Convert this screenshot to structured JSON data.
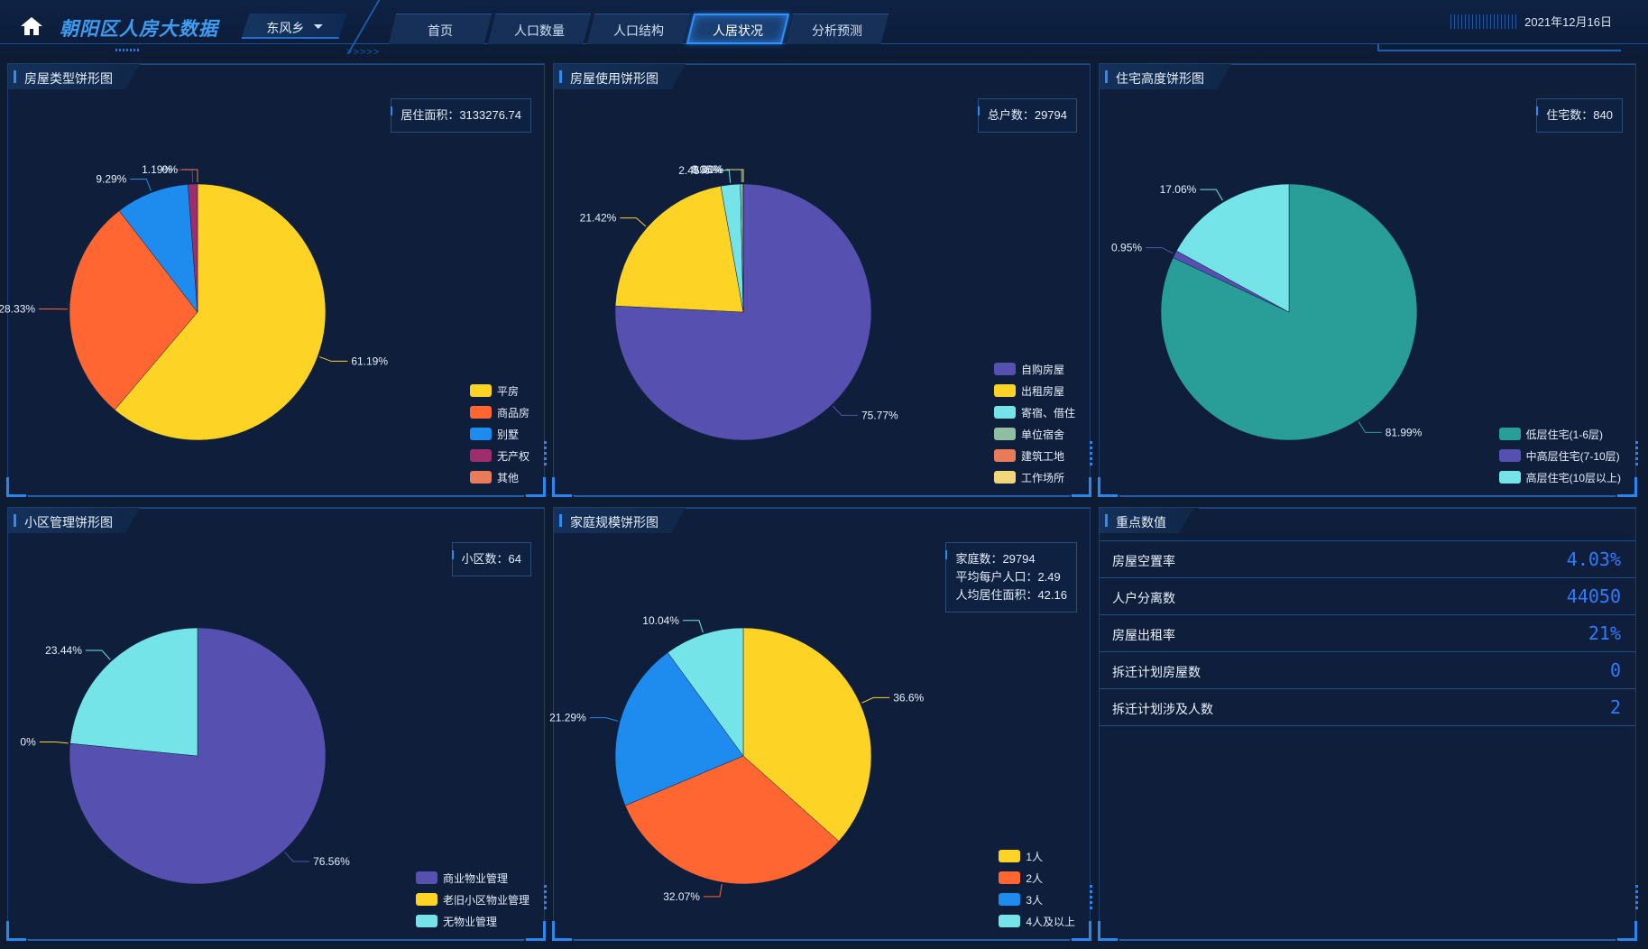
{
  "header": {
    "title": "朝阳区人房大数据",
    "region": "东风乡",
    "date": "2021年12月16日",
    "tabs": [
      {
        "label": "首页",
        "active": false
      },
      {
        "label": "人口数量",
        "active": false
      },
      {
        "label": "人口结构",
        "active": false
      },
      {
        "label": "人居状况",
        "active": true
      },
      {
        "label": "分析预测",
        "active": false
      }
    ]
  },
  "panels": {
    "housing_type": {
      "title": "房屋类型饼形图",
      "info": [
        "居住面积：3133276.74"
      ]
    },
    "housing_use": {
      "title": "房屋使用饼形图",
      "info": [
        "总户数：29794"
      ]
    },
    "housing_height": {
      "title": "住宅高度饼形图",
      "info": [
        "住宅数：840"
      ]
    },
    "community_mgmt": {
      "title": "小区管理饼形图",
      "info": [
        "小区数：64"
      ]
    },
    "family_size": {
      "title": "家庭规模饼形图",
      "info": [
        "家庭数：29794",
        "平均每户人口：2.49",
        "人均居住面积：42.16"
      ]
    },
    "key_values": {
      "title": "重点数值",
      "rows": [
        {
          "label": "房屋空置率",
          "value": "4.03%"
        },
        {
          "label": "人户分离数",
          "value": "44050"
        },
        {
          "label": "房屋出租率",
          "value": "21%"
        },
        {
          "label": "拆迁计划房屋数",
          "value": "0"
        },
        {
          "label": "拆迁计划涉及人数",
          "value": "2"
        }
      ]
    }
  },
  "chart_data": [
    {
      "id": "housing_type",
      "type": "pie",
      "categories": [
        "平房",
        "商品房",
        "别墅",
        "无产权",
        "其他"
      ],
      "values": [
        61.19,
        28.33,
        9.29,
        1.19,
        0
      ],
      "labels": [
        "61.19%",
        "28.33%",
        "9.29%",
        "1.19%",
        "0%"
      ],
      "colors": [
        "#fdd325",
        "#ff6631",
        "#1e8bef",
        "#9e2e6b",
        "#e77b5a"
      ]
    },
    {
      "id": "housing_use",
      "type": "pie",
      "categories": [
        "自购房屋",
        "出租房屋",
        "寄宿、借住",
        "单位宿舍",
        "建筑工地",
        "工作场所"
      ],
      "values": [
        75.77,
        21.42,
        2.45,
        0.35,
        0.01,
        0
      ],
      "labels": [
        "75.77%",
        "21.42%",
        "2.45%",
        "0.35%",
        "0.01%",
        "0%"
      ],
      "colors": [
        "#5650b0",
        "#fdd325",
        "#74e4e8",
        "#8fbfa0",
        "#e77b5a",
        "#f1d77a"
      ]
    },
    {
      "id": "housing_height",
      "type": "pie",
      "categories": [
        "低层住宅(1-6层)",
        "中高层住宅(7-10层)",
        "高层住宅(10层以上)"
      ],
      "values": [
        81.99,
        0.95,
        17.06
      ],
      "labels": [
        "81.99%",
        "0.95%",
        "17.06%"
      ],
      "colors": [
        "#299e99",
        "#5650b0",
        "#74e4e8"
      ]
    },
    {
      "id": "community_mgmt",
      "type": "pie",
      "categories": [
        "商业物业管理",
        "老旧小区物业管理",
        "无物业管理"
      ],
      "values": [
        76.56,
        0,
        23.44
      ],
      "labels": [
        "76.56%",
        "0%",
        "23.44%"
      ],
      "colors": [
        "#5650b0",
        "#fdd325",
        "#74e4e8"
      ]
    },
    {
      "id": "family_size",
      "type": "pie",
      "categories": [
        "1人",
        "2人",
        "3人",
        "4人及以上"
      ],
      "values": [
        36.6,
        32.07,
        21.29,
        10.04
      ],
      "labels": [
        "36.6%",
        "32.07%",
        "21.29%",
        "10.04%"
      ],
      "colors": [
        "#fdd325",
        "#ff6631",
        "#1e8bef",
        "#74e4e8"
      ]
    }
  ]
}
